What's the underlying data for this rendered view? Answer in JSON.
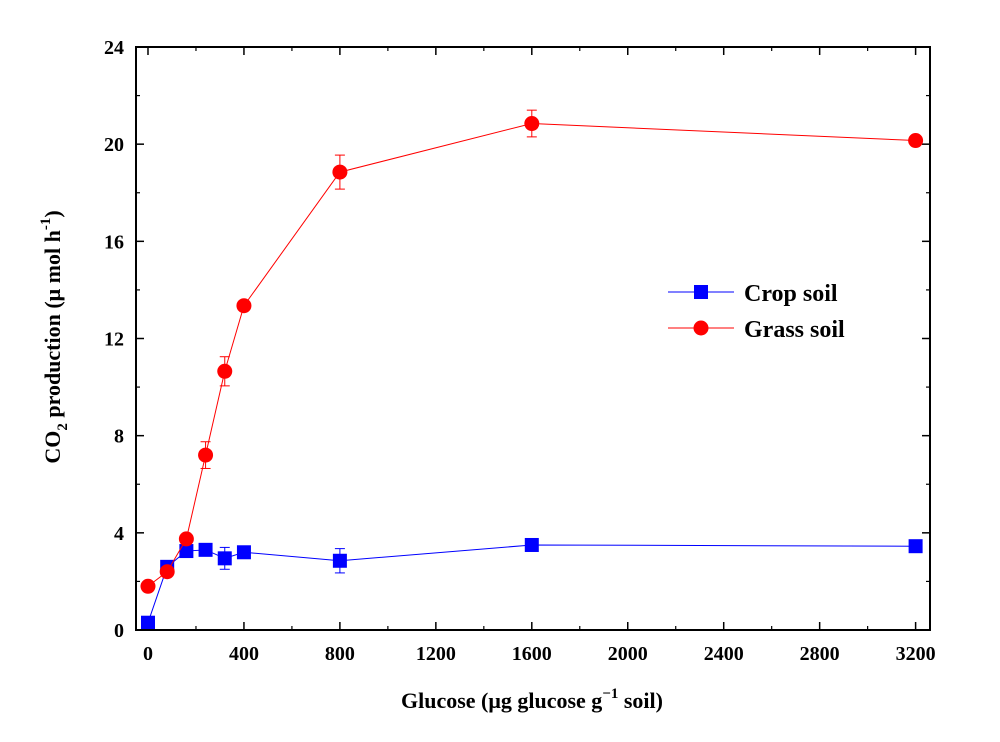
{
  "chart_data": {
    "type": "line",
    "title": "",
    "xlabel": {
      "main": "Glucose (μg glucose g",
      "sup": "−1",
      "tail": " soil)"
    },
    "ylabel": {
      "pre": "CO",
      "sub": "2",
      "mid": " production (μ mol h",
      "sup": "-1",
      "tail": ")"
    },
    "xlim": [
      -50,
      3260
    ],
    "ylim": [
      0,
      24
    ],
    "xticks": [
      0,
      400,
      800,
      1200,
      1600,
      2000,
      2400,
      2800,
      3200
    ],
    "yticks": [
      0,
      4,
      8,
      12,
      16,
      20,
      24
    ],
    "legend_position": "center-right",
    "series": [
      {
        "name": "Crop soil",
        "color": "#0000ff",
        "marker": "square",
        "x": [
          0,
          80,
          160,
          240,
          320,
          400,
          800,
          1600,
          3200
        ],
        "y": [
          0.3,
          2.6,
          3.25,
          3.3,
          2.95,
          3.2,
          2.85,
          3.5,
          3.45
        ],
        "err": [
          0.1,
          0.1,
          0.15,
          0.15,
          0.45,
          0.15,
          0.5,
          0.1,
          0.1
        ]
      },
      {
        "name": "Grass soil",
        "color": "#ff0000",
        "marker": "circle",
        "x": [
          0,
          80,
          160,
          240,
          320,
          400,
          800,
          1600,
          3200
        ],
        "y": [
          1.8,
          2.4,
          3.75,
          7.2,
          10.65,
          13.35,
          18.85,
          20.85,
          20.15
        ],
        "err": [
          0.1,
          0.1,
          0.1,
          0.55,
          0.6,
          0.1,
          0.7,
          0.55,
          0.1
        ]
      }
    ]
  }
}
